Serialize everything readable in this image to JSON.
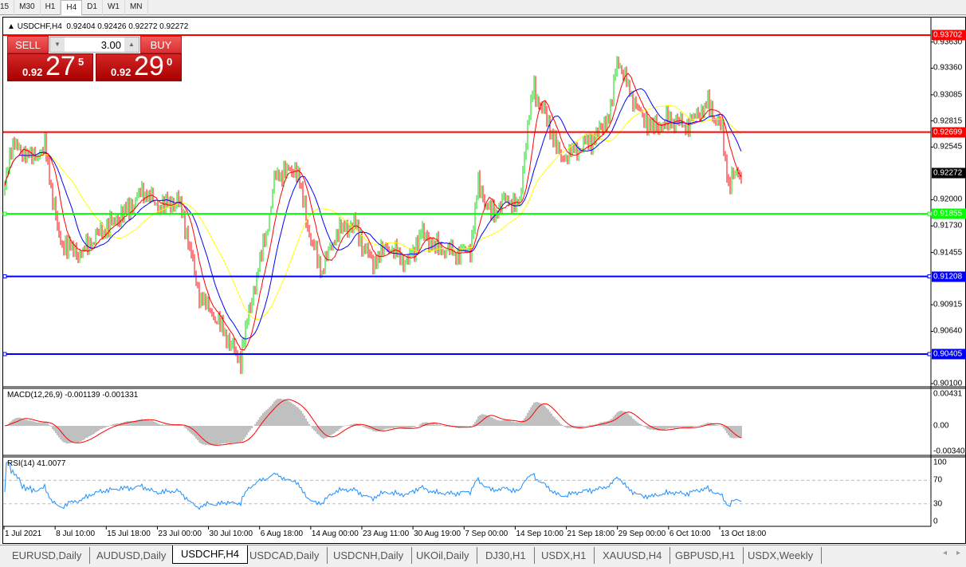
{
  "timeframes": [
    {
      "label": "15"
    },
    {
      "label": "M30"
    },
    {
      "label": "H1"
    },
    {
      "label": "H4",
      "active": true
    },
    {
      "label": "D1"
    },
    {
      "label": "W1"
    },
    {
      "label": "MN"
    }
  ],
  "header": {
    "symbol": "USDCHF,H4",
    "ohlc": "0.92404 0.92426 0.92272 0.92272"
  },
  "trade": {
    "sell_label": "SELL",
    "buy_label": "BUY",
    "lot": "3.00",
    "sell_prefix": "0.92",
    "sell_big": "27",
    "sell_sup": "5",
    "buy_prefix": "0.92",
    "buy_big": "29",
    "buy_sup": "0"
  },
  "chart_data": {
    "type": "ohlc",
    "symbol": "USDCHF",
    "timeframe": "H4",
    "price_range": [
      0.901,
      0.93702
    ],
    "price_ticks": [
      "0.93630",
      "0.93360",
      "0.93085",
      "0.92815",
      "0.92545",
      "0.92000",
      "0.91730",
      "0.91455",
      "0.90915",
      "0.90640",
      "0.90100"
    ],
    "current_price": "0.92272",
    "hlines": [
      {
        "value": "0.93702",
        "color": "#ff0000"
      },
      {
        "value": "0.92699",
        "color": "#ff0000"
      },
      {
        "value": "0.91855",
        "color": "#00ff00"
      },
      {
        "value": "0.91208",
        "color": "#0000ff"
      },
      {
        "value": "0.90405",
        "color": "#0000ff"
      }
    ],
    "x_ticks": [
      "1 Jul 2021",
      "8 Jul 10:00",
      "15 Jul 18:00",
      "23 Jul 00:00",
      "30 Jul 10:00",
      "6 Aug 18:00",
      "14 Aug 00:00",
      "23 Aug 11:00",
      "30 Aug 19:00",
      "7 Sep 00:00",
      "14 Sep 10:00",
      "21 Sep 18:00",
      "29 Sep 00:00",
      "6 Oct 10:00",
      "13 Oct 18:00"
    ],
    "close_waypoints": [
      [
        "2021-07-01",
        0.9209
      ],
      [
        "2021-07-02",
        0.9258
      ],
      [
        "2021-07-05",
        0.9242
      ],
      [
        "2021-07-07",
        0.9254
      ],
      [
        "2021-07-09",
        0.9159
      ],
      [
        "2021-07-12",
        0.9143
      ],
      [
        "2021-07-15",
        0.9167
      ],
      [
        "2021-07-19",
        0.9192
      ],
      [
        "2021-07-21",
        0.9209
      ],
      [
        "2021-07-23",
        0.9192
      ],
      [
        "2021-07-26",
        0.92
      ],
      [
        "2021-07-27",
        0.9176
      ],
      [
        "2021-07-29",
        0.9102
      ],
      [
        "2021-08-02",
        0.906
      ],
      [
        "2021-08-03",
        0.9044
      ],
      [
        "2021-08-04",
        0.9036
      ],
      [
        "2021-08-05",
        0.9077
      ],
      [
        "2021-08-08",
        0.9176
      ],
      [
        "2021-08-09",
        0.9225
      ],
      [
        "2021-08-12",
        0.9233
      ],
      [
        "2021-08-14",
        0.9159
      ],
      [
        "2021-08-16",
        0.9126
      ],
      [
        "2021-08-19",
        0.9167
      ],
      [
        "2021-08-22",
        0.9176
      ],
      [
        "2021-08-25",
        0.9135
      ],
      [
        "2021-08-27",
        0.9151
      ],
      [
        "2021-08-30",
        0.9135
      ],
      [
        "2021-09-01",
        0.9167
      ],
      [
        "2021-09-03",
        0.9151
      ],
      [
        "2021-09-06",
        0.9143
      ],
      [
        "2021-09-08",
        0.9151
      ],
      [
        "2021-09-09",
        0.9217
      ],
      [
        "2021-09-11",
        0.9184
      ],
      [
        "2021-09-13",
        0.92
      ],
      [
        "2021-09-15",
        0.9192
      ],
      [
        "2021-09-16",
        0.9266
      ],
      [
        "2021-09-17",
        0.9316
      ],
      [
        "2021-09-19",
        0.9283
      ],
      [
        "2021-09-21",
        0.9242
      ],
      [
        "2021-09-23",
        0.925
      ],
      [
        "2021-09-26",
        0.9266
      ],
      [
        "2021-09-28",
        0.9291
      ],
      [
        "2021-09-29",
        0.9349
      ],
      [
        "2021-09-30",
        0.9324
      ],
      [
        "2021-10-02",
        0.9291
      ],
      [
        "2021-10-04",
        0.9275
      ],
      [
        "2021-10-07",
        0.9283
      ],
      [
        "2021-10-09",
        0.9275
      ],
      [
        "2021-10-12",
        0.9299
      ],
      [
        "2021-10-14",
        0.9275
      ],
      [
        "2021-10-15",
        0.9217
      ],
      [
        "2021-10-16",
        0.9227
      ]
    ],
    "colors": {
      "bull": "#00dd00",
      "bear": "#ff0000",
      "ma_fast": "#ff0000",
      "ma_mid": "#0000ff",
      "ma_slow": "#ffff00"
    },
    "macd": {
      "label": "MACD(12,26,9) -0.001139 -0.001331",
      "ticks": [
        "0.00431",
        "0.00",
        "-0.003405"
      ],
      "hist_color": "#c0c0c0",
      "signal_color": "#ff0000"
    },
    "rsi": {
      "label": "RSI(14) 41.0077",
      "ticks": [
        "100",
        "70",
        "30",
        "0"
      ],
      "levels": [
        70,
        30
      ],
      "color": "#1e90ff"
    }
  },
  "tabs": [
    {
      "label": "EURUSD,Daily"
    },
    {
      "label": "AUDUSD,Daily"
    },
    {
      "label": "USDCHF,H4",
      "active": true
    },
    {
      "label": "USDCAD,Daily"
    },
    {
      "label": "USDCNH,Daily"
    },
    {
      "label": "UKOil,Daily"
    },
    {
      "label": "DJ30,H1"
    },
    {
      "label": "USDX,H1"
    },
    {
      "label": "XAUUSD,H4"
    },
    {
      "label": "GBPUSD,H1"
    },
    {
      "label": "USDX,Weekly"
    }
  ]
}
